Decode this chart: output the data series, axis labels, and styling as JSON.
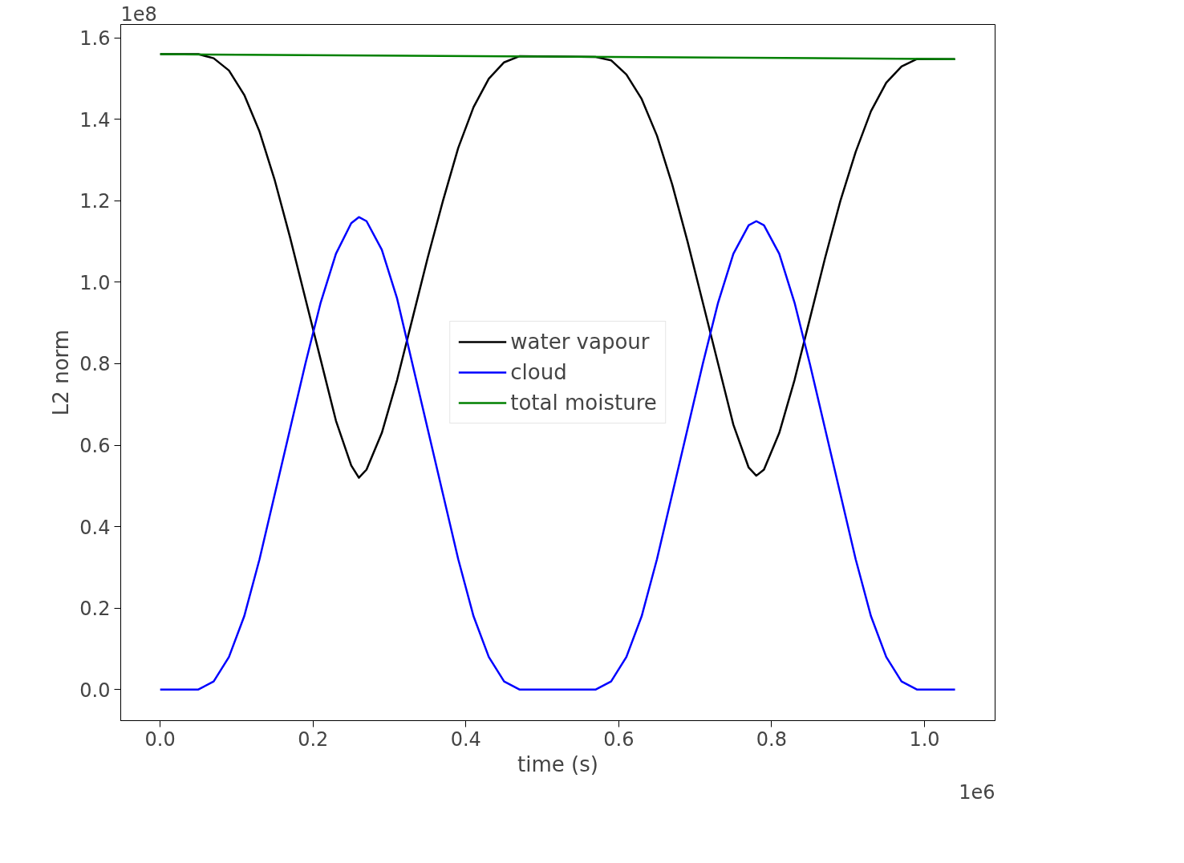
{
  "chart_data": {
    "type": "line",
    "xlabel": "time (s)",
    "ylabel": "L2 norm",
    "annotations": [
      "1e8",
      "1e6"
    ],
    "xlim": [
      -0.0516,
      1.0924
    ],
    "ylim": [
      -0.0764,
      1.633
    ],
    "xticks": [
      {
        "value": 0,
        "label": "0.0"
      },
      0.2,
      0.4,
      0.6,
      0.8,
      {
        "value": 1,
        "label": "1.0"
      }
    ],
    "yticks": [
      {
        "value": 0,
        "label": "0.0"
      },
      0.2,
      0.4,
      0.6,
      0.8,
      {
        "value": 1,
        "label": "1.0"
      },
      1.2,
      1.4,
      1.6
    ],
    "x": [
      0,
      0.05,
      0.07,
      0.09,
      0.11,
      0.13,
      0.15,
      0.17,
      0.19,
      0.21,
      0.23,
      0.25,
      0.26,
      0.27,
      0.29,
      0.31,
      0.33,
      0.35,
      0.37,
      0.39,
      0.41,
      0.43,
      0.45,
      0.47,
      0.57,
      0.59,
      0.61,
      0.63,
      0.65,
      0.67,
      0.69,
      0.71,
      0.73,
      0.75,
      0.77,
      0.78,
      0.79,
      0.81,
      0.83,
      0.85,
      0.87,
      0.89,
      0.91,
      0.93,
      0.95,
      0.97,
      0.99,
      1.04
    ],
    "series": [
      {
        "name": "water vapour",
        "color": "#000000",
        "values": [
          1.56,
          1.56,
          1.55,
          1.52,
          1.46,
          1.37,
          1.25,
          1.11,
          0.96,
          0.81,
          0.66,
          0.55,
          0.52,
          0.54,
          0.63,
          0.76,
          0.91,
          1.06,
          1.2,
          1.33,
          1.43,
          1.5,
          1.54,
          1.555,
          1.553,
          1.545,
          1.51,
          1.45,
          1.36,
          1.24,
          1.1,
          0.95,
          0.8,
          0.65,
          0.545,
          0.525,
          0.54,
          0.63,
          0.76,
          0.91,
          1.06,
          1.2,
          1.32,
          1.42,
          1.49,
          1.53,
          1.548,
          1.548
        ]
      },
      {
        "name": "cloud",
        "color": "#0000ff",
        "values": [
          0,
          0,
          0.02,
          0.08,
          0.18,
          0.32,
          0.48,
          0.64,
          0.8,
          0.95,
          1.07,
          1.145,
          1.16,
          1.15,
          1.08,
          0.96,
          0.8,
          0.64,
          0.48,
          0.32,
          0.18,
          0.08,
          0.02,
          0,
          0,
          0.02,
          0.08,
          0.18,
          0.32,
          0.48,
          0.64,
          0.8,
          0.95,
          1.07,
          1.14,
          1.15,
          1.14,
          1.07,
          0.95,
          0.8,
          0.64,
          0.48,
          0.32,
          0.18,
          0.08,
          0.02,
          0,
          0
        ]
      },
      {
        "name": "total moisture",
        "color": "#008000",
        "x": [
          0,
          1.04
        ],
        "values": [
          1.56,
          1.548
        ]
      }
    ],
    "legend": "center",
    "grid": false,
    "marker": "none",
    "line_style": "solid"
  }
}
